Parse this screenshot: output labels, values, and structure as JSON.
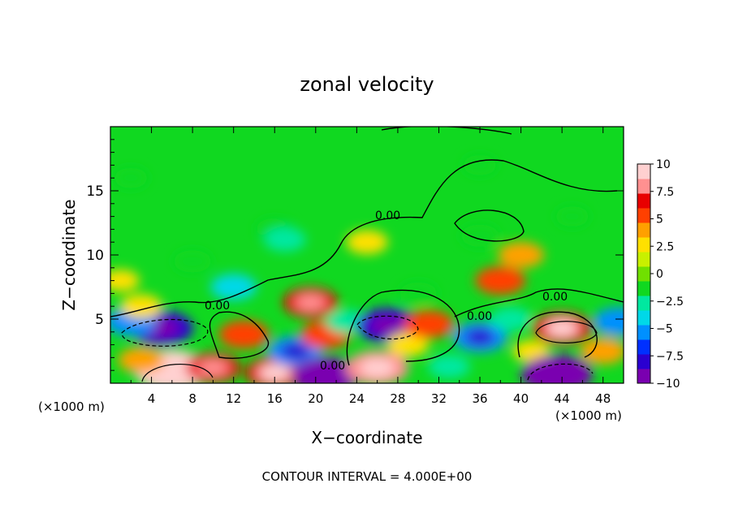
{
  "chart_data": {
    "type": "heatmap",
    "title": "zonal velocity",
    "xlabel": "X−coordinate",
    "ylabel": "Z−coordinate",
    "x_unit_left": "(×1000 m)",
    "x_unit_right": "(×1000 m)",
    "footer": "CONTOUR INTERVAL = 4.000E+00",
    "xlim": [
      0,
      50
    ],
    "ylim": [
      0,
      20
    ],
    "x_ticks": [
      "4",
      "8",
      "12",
      "16",
      "20",
      "24",
      "28",
      "32",
      "36",
      "40",
      "44",
      "48"
    ],
    "y_ticks": [
      "5",
      "10",
      "15"
    ],
    "colorbar": {
      "range": [
        -10,
        10
      ],
      "ticks": [
        "10",
        "7.5",
        "5",
        "2.5",
        "0",
        "−2.5",
        "−5",
        "−7.5",
        "−10"
      ],
      "colors": [
        "#7a00b0",
        "#2a00d0",
        "#0030ff",
        "#0090ff",
        "#00d8e8",
        "#00e8a0",
        "#10d820",
        "#70e000",
        "#c8f000",
        "#ffe000",
        "#ffa000",
        "#ff4000",
        "#e80000",
        "#ff9090",
        "#ffd0d0"
      ]
    },
    "contour_labels": [
      "0.00",
      "0.00",
      "0.00",
      "0.00",
      "0.00"
    ],
    "cells": [
      {
        "x": 6,
        "z": 1.0,
        "v": 11
      },
      {
        "x": 3,
        "z": 1.8,
        "v": 4
      },
      {
        "x": 5,
        "z": 4.3,
        "v": -8
      },
      {
        "x": 2,
        "z": 4.8,
        "v": -5
      },
      {
        "x": 3,
        "z": 6.0,
        "v": 3
      },
      {
        "x": 10,
        "z": 1.2,
        "v": 6
      },
      {
        "x": 13,
        "z": 3.8,
        "v": 5
      },
      {
        "x": 16,
        "z": 0.8,
        "v": 7
      },
      {
        "x": 18,
        "z": 2.5,
        "v": -6
      },
      {
        "x": 19.5,
        "z": 6.3,
        "v": 6
      },
      {
        "x": 21,
        "z": 3.8,
        "v": 5
      },
      {
        "x": 21,
        "z": 0.6,
        "v": -9
      },
      {
        "x": 23,
        "z": 4.8,
        "v": -3
      },
      {
        "x": 26,
        "z": 1.2,
        "v": 8
      },
      {
        "x": 27,
        "z": 4.5,
        "v": -8
      },
      {
        "x": 29,
        "z": 3.0,
        "v": 3
      },
      {
        "x": 31,
        "z": 4.6,
        "v": 5
      },
      {
        "x": 33,
        "z": 1.3,
        "v": -3
      },
      {
        "x": 36,
        "z": 3.6,
        "v": -6
      },
      {
        "x": 38,
        "z": 8.0,
        "v": 5
      },
      {
        "x": 39,
        "z": 5.0,
        "v": -3
      },
      {
        "x": 41,
        "z": 2.5,
        "v": 2
      },
      {
        "x": 44,
        "z": 4.3,
        "v": 7
      },
      {
        "x": 43.5,
        "z": 0.7,
        "v": -10
      },
      {
        "x": 48,
        "z": 2.5,
        "v": 4
      },
      {
        "x": 49.5,
        "z": 4.8,
        "v": -5
      },
      {
        "x": 1,
        "z": 8.0,
        "v": 2
      },
      {
        "x": 16,
        "z": 12.0,
        "v": -2
      },
      {
        "x": 17,
        "z": 11.2,
        "v": -3
      },
      {
        "x": 8,
        "z": 9.5,
        "v": -2
      },
      {
        "x": 25,
        "z": 11.0,
        "v": 3
      },
      {
        "x": 36,
        "z": 11.5,
        "v": -2
      },
      {
        "x": 40,
        "z": 10.0,
        "v": 4
      },
      {
        "x": 12,
        "z": 7.5,
        "v": -4
      },
      {
        "x": 30,
        "z": 7.0,
        "v": -2
      },
      {
        "x": 2,
        "z": 16.0,
        "v": -1
      },
      {
        "x": 36,
        "z": 17.0,
        "v": -1
      },
      {
        "x": 45,
        "z": 13.0,
        "v": -1
      }
    ]
  }
}
